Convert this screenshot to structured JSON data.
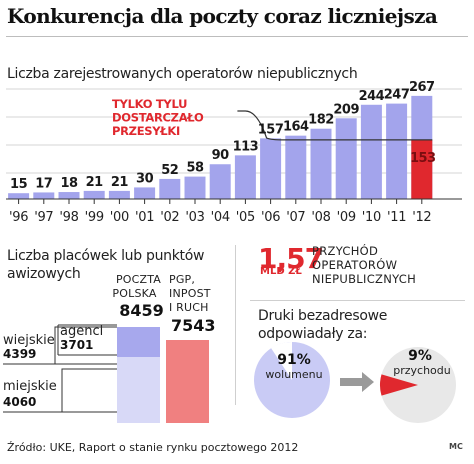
{
  "title": "Konkurencja dla poczty coraz liczniejsza",
  "chart_data": [
    {
      "type": "bar",
      "title": "Liczba zarejestrowanych operatorów niepublicznych",
      "categories": [
        "'96",
        "'97",
        "'98",
        "'99",
        "'00",
        "'01",
        "'02",
        "'03",
        "'04",
        "'05",
        "'06",
        "'07",
        "'08",
        "'09",
        "'10",
        "'11",
        "'12"
      ],
      "values": [
        15,
        17,
        18,
        21,
        21,
        30,
        52,
        58,
        90,
        113,
        157,
        164,
        182,
        209,
        244,
        247,
        267
      ],
      "value_labels": [
        "15",
        "17",
        "18",
        "21",
        "21",
        "30",
        "52",
        "58",
        "90",
        "113",
        "157",
        "164",
        "182",
        "209",
        "244",
        "247",
        "267"
      ],
      "highlight": {
        "category": "'12",
        "value": 153,
        "label": "153",
        "color": "#e0282e"
      },
      "annotation": "TYLKO TYLU DOSTARCZAŁO PRZESYŁKI",
      "ylim": [
        0,
        290
      ],
      "grid": true,
      "colors": {
        "bar": "#a3a4ec",
        "highlight": "#e0282e",
        "annotation": "#e0282e",
        "axis": "#333333"
      }
    },
    {
      "type": "bar",
      "title": "Liczba placówek lub punktów awizowych",
      "stacked": true,
      "groups": [
        {
          "name": "POCZTA POLSKA",
          "total": 8459,
          "total_label": "8459",
          "segments": [
            {
              "name": "miejskie",
              "value": 4060,
              "label": "4060"
            },
            {
              "name": "wiejskie",
              "value": 4399,
              "label": "4399"
            },
            {
              "name": "agenci",
              "value": 3701,
              "label": "3701"
            }
          ]
        },
        {
          "name": "PGP, INPOST I RUCH",
          "total": 7543,
          "total_label": "7543"
        }
      ],
      "colors": {
        "poczta": "#c9cbf5",
        "poczta_dark": "#a3a4ec",
        "poczta_agents": "#d8d9f7",
        "competitors": "#f08080"
      }
    },
    {
      "type": "pie",
      "title": "Druki bezadresowe odpowiadały za:",
      "pies": [
        {
          "label": "wolumenu",
          "percent": 91,
          "percent_label": "91%"
        },
        {
          "label": "przychodu",
          "percent": 9,
          "percent_label": "9%"
        }
      ],
      "colors": {
        "pie_light": "#c9cbf5",
        "pie_grey": "#e8e8e8",
        "slice": "#e0282e",
        "arrow": "#9a9a9a"
      }
    }
  ],
  "kpi": {
    "value": "1,57",
    "unit": "MLD ZŁ",
    "text": "PRZYCHÓD OPERATORÓW NIEPUBLICZNYCH"
  },
  "footer": "Źródło: UKE, Raport o stanie rynku pocztowego 2012",
  "signature": "MC"
}
